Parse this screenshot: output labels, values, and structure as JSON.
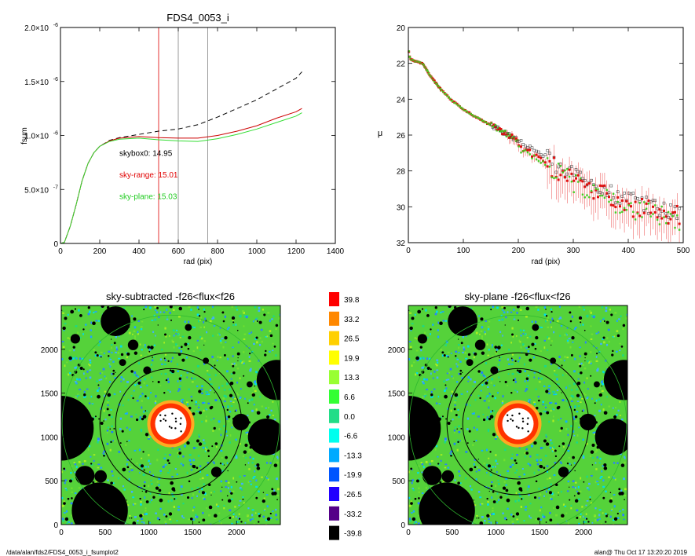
{
  "chart_data": [
    {
      "type": "line",
      "title": "FDS4_0053_i",
      "xlabel": "rad (pix)",
      "ylabel": "fsum",
      "xlim": [
        0,
        1400
      ],
      "ylim": [
        0,
        2e-06
      ],
      "xticks": [
        "0",
        "200",
        "400",
        "600",
        "800",
        "1000",
        "1200",
        "1400"
      ],
      "yticks": [
        {
          "v": 0,
          "mant": "0",
          "exp": ""
        },
        {
          "v": 5e-07,
          "mant": "5.0×10",
          "exp": "-7"
        },
        {
          "v": 1e-06,
          "mant": "1.0×10",
          "exp": "-6"
        },
        {
          "v": 1.5e-06,
          "mant": "1.5×10",
          "exp": "-6"
        },
        {
          "v": 2e-06,
          "mant": "2.0×10",
          "exp": "-6"
        }
      ],
      "vlines": [
        {
          "x": 500,
          "color": "#e00000"
        },
        {
          "x": 600,
          "color": "#808080"
        },
        {
          "x": 750,
          "color": "#808080"
        }
      ],
      "annotations": [
        {
          "text": "skybox0: 14.95",
          "color": "#000000",
          "x": 300,
          "y": 8.1e-07
        },
        {
          "text": "sky-range: 15.01",
          "color": "#e00000",
          "x": 300,
          "y": 6.1e-07
        },
        {
          "text": "sky-plane: 15.03",
          "color": "#22cc22",
          "x": 300,
          "y": 4.1e-07
        }
      ],
      "series": [
        {
          "style": "dashed",
          "color": "#000000",
          "x": [
            0,
            20,
            50,
            80,
            110,
            140,
            170,
            200,
            250,
            300,
            400,
            500,
            600,
            700,
            800,
            900,
            1000,
            1100,
            1200,
            1230
          ],
          "y": [
            0,
            1e-08,
            1.6e-07,
            3.6e-07,
            5.8e-07,
            7.4e-07,
            8.4e-07,
            9e-07,
            9.55e-07,
            9.8e-07,
            1.01e-06,
            1.04e-06,
            1.06e-06,
            1.1e-06,
            1.17e-06,
            1.25e-06,
            1.33e-06,
            1.43e-06,
            1.53e-06,
            1.59e-06
          ]
        },
        {
          "style": "solid",
          "color": "#cc0000",
          "x": [
            0,
            20,
            50,
            80,
            110,
            140,
            170,
            200,
            250,
            300,
            400,
            500,
            600,
            700,
            800,
            900,
            1000,
            1100,
            1200,
            1230
          ],
          "y": [
            0,
            1e-08,
            1.6e-07,
            3.6e-07,
            5.8e-07,
            7.4e-07,
            8.4e-07,
            9e-07,
            9.5e-07,
            9.75e-07,
            9.9e-07,
            9.8e-07,
            9.75e-07,
            9.75e-07,
            1e-06,
            1.04e-06,
            1.09e-06,
            1.16e-06,
            1.22e-06,
            1.25e-06
          ]
        },
        {
          "style": "solid",
          "color": "#33dd33",
          "x": [
            0,
            20,
            50,
            80,
            110,
            140,
            170,
            200,
            250,
            300,
            400,
            500,
            600,
            700,
            800,
            900,
            1000,
            1100,
            1200,
            1230
          ],
          "y": [
            0,
            1e-08,
            1.6e-07,
            3.6e-07,
            5.8e-07,
            7.4e-07,
            8.4e-07,
            9e-07,
            9.45e-07,
            9.65e-07,
            9.75e-07,
            9.6e-07,
            9.5e-07,
            9.45e-07,
            9.7e-07,
            1.01e-06,
            1.06e-06,
            1.12e-06,
            1.18e-06,
            1.21e-06
          ]
        }
      ]
    },
    {
      "type": "scatter",
      "title": "",
      "xlabel": "rad (pix)",
      "ylabel": "μ",
      "xlim": [
        0,
        500
      ],
      "ylim": [
        32,
        20
      ],
      "xticks": [
        0,
        100,
        200,
        300,
        400,
        500
      ],
      "yticks": [
        20,
        22,
        24,
        26,
        28,
        30,
        32
      ],
      "profile_x": [
        0,
        2,
        5,
        10,
        15,
        20,
        25,
        30,
        35,
        40,
        50,
        60,
        70,
        80,
        100,
        120,
        150,
        180,
        200,
        220,
        240,
        260,
        280,
        300,
        320,
        340,
        360,
        380,
        400,
        420,
        440,
        460,
        480,
        500
      ],
      "profile_y": [
        21.1,
        21.6,
        21.8,
        21.85,
        21.9,
        21.95,
        22.0,
        22.2,
        22.45,
        22.7,
        23.1,
        23.5,
        23.8,
        24.1,
        24.55,
        24.95,
        25.45,
        25.95,
        26.3,
        26.65,
        27.05,
        27.45,
        27.85,
        28.2,
        28.55,
        28.85,
        29.15,
        29.4,
        29.6,
        29.8,
        29.95,
        30.1,
        30.2,
        30.3
      ],
      "series": [
        {
          "marker": "open-square",
          "color": "#000000"
        },
        {
          "marker": "filled-square",
          "color": "#dd0000"
        },
        {
          "marker": "filled-square",
          "color": "#33dd33"
        }
      ]
    },
    {
      "type": "heatmap",
      "title": "sky-subtracted -f26<flux<f26",
      "xlim": [
        0,
        2500
      ],
      "ylim": [
        0,
        2500
      ],
      "xticks": [
        0,
        500,
        1000,
        1500,
        2000
      ],
      "yticks": [
        0,
        500,
        1000,
        1500,
        2000
      ]
    },
    {
      "type": "heatmap",
      "title": "sky-plane -f26<flux<f26",
      "xlim": [
        0,
        2500
      ],
      "ylim": [
        0,
        2500
      ],
      "xticks": [
        0,
        500,
        1000,
        1500,
        2000
      ],
      "yticks": [
        0,
        500,
        1000,
        1500,
        2000
      ]
    }
  ],
  "colorbar": {
    "labels": [
      "39.8",
      "33.2",
      "26.5",
      "19.9",
      "13.3",
      "6.6",
      "0.0",
      "-6.6",
      "-13.3",
      "-19.9",
      "-26.5",
      "-33.2",
      "-39.8"
    ],
    "colors": [
      "#ff0000",
      "#ff8800",
      "#ffd000",
      "#ffff00",
      "#99ff33",
      "#33ff33",
      "#22dd88",
      "#00ffee",
      "#00aaff",
      "#0055ff",
      "#2200ff",
      "#550088",
      "#000000"
    ]
  },
  "image_masks": [
    {
      "x": 0,
      "y": 1100,
      "r": 370
    },
    {
      "x": 620,
      "y": 2320,
      "r": 170
    },
    {
      "x": 2460,
      "y": 1650,
      "r": 230
    },
    {
      "x": 2340,
      "y": 1000,
      "r": 210
    },
    {
      "x": 440,
      "y": 160,
      "r": 320
    },
    {
      "x": 820,
      "y": 2050,
      "r": 60
    },
    {
      "x": 700,
      "y": 1850,
      "r": 40
    },
    {
      "x": 980,
      "y": 1760,
      "r": 45
    },
    {
      "x": 1650,
      "y": 1870,
      "r": 35
    },
    {
      "x": 2050,
      "y": 1170,
      "r": 95
    },
    {
      "x": 270,
      "y": 560,
      "r": 110
    },
    {
      "x": 450,
      "y": 550,
      "r": 70
    },
    {
      "x": 1770,
      "y": 600,
      "r": 60
    },
    {
      "x": 1450,
      "y": 2250,
      "r": 40
    },
    {
      "x": 160,
      "y": 2120,
      "r": 55
    },
    {
      "x": 2150,
      "y": 1600,
      "r": 35
    }
  ],
  "footer": {
    "left": "/data/alan/fds2/FDS4_0053_i_fsumplot2",
    "right": "alan@  Thu Oct 17 13:20:20 2019"
  }
}
